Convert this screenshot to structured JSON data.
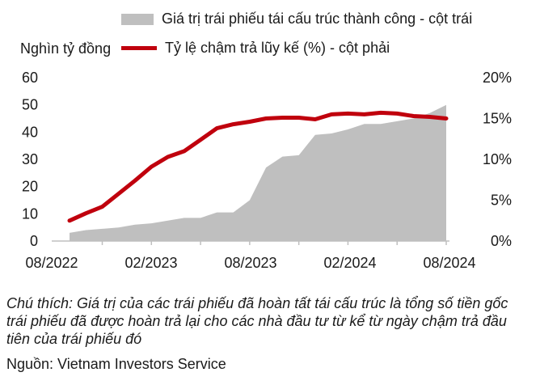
{
  "legend": {
    "area": "Giá trị trái phiếu tái cấu trúc thành công - cột trái",
    "line": "Tỷ lệ chậm trả lũy kế (%) - cột phải"
  },
  "y_unit": "Nghìn tỷ đồng",
  "footnote": "Chú thích: Giá trị của các trái phiếu đã hoàn tất tái cấu trúc là tổng số tiền gốc trái phiếu đã được hoàn trả lại cho các nhà đầu tư từ kể từ ngày chậm trả đầu tiên của trái phiếu đó",
  "source": "Nguồn: Vietnam Investors Service",
  "colors": {
    "area": "#bfbfbf",
    "line": "#c0000d",
    "axis": "#bfbfbf"
  },
  "chart_data": {
    "type": "area",
    "x": [
      "09/2022",
      "10/2022",
      "11/2022",
      "12/2022",
      "01/2023",
      "02/2023",
      "03/2023",
      "04/2023",
      "05/2023",
      "06/2023",
      "07/2023",
      "08/2023",
      "09/2023",
      "10/2023",
      "11/2023",
      "12/2023",
      "01/2024",
      "02/2024",
      "03/2024",
      "04/2024",
      "05/2024",
      "06/2024",
      "07/2024",
      "08/2024"
    ],
    "x_tick_labels": [
      "08/2022",
      "02/2023",
      "08/2023",
      "02/2024",
      "08/2024"
    ],
    "series": [
      {
        "name": "Giá trị trái phiếu tái cấu trúc thành công - cột trái",
        "type": "area",
        "axis": "left",
        "values": [
          3,
          4,
          4.5,
          5,
          6,
          6.5,
          7.5,
          8.5,
          8.5,
          10.5,
          10.5,
          15,
          27,
          31,
          31.5,
          39,
          39.5,
          41,
          43,
          43,
          44,
          45,
          47,
          50
        ]
      },
      {
        "name": "Tỷ lệ chậm trả lũy kế (%) - cột phải",
        "type": "line",
        "axis": "right",
        "values": [
          2.5,
          3.4,
          4.2,
          5.8,
          7.4,
          9.1,
          10.3,
          11,
          12.4,
          13.8,
          14.3,
          14.6,
          15,
          15.1,
          15.1,
          14.9,
          15.5,
          15.6,
          15.5,
          15.7,
          15.6,
          15.3,
          15.2,
          15.0
        ]
      }
    ],
    "y_left": {
      "ylim": [
        0,
        60
      ],
      "ticks": [
        "0",
        "10",
        "20",
        "30",
        "40",
        "50",
        "60"
      ]
    },
    "y_right": {
      "ylim": [
        0,
        20
      ],
      "ticks": [
        "0%",
        "5%",
        "10%",
        "15%",
        "20%"
      ]
    },
    "grid": false
  }
}
